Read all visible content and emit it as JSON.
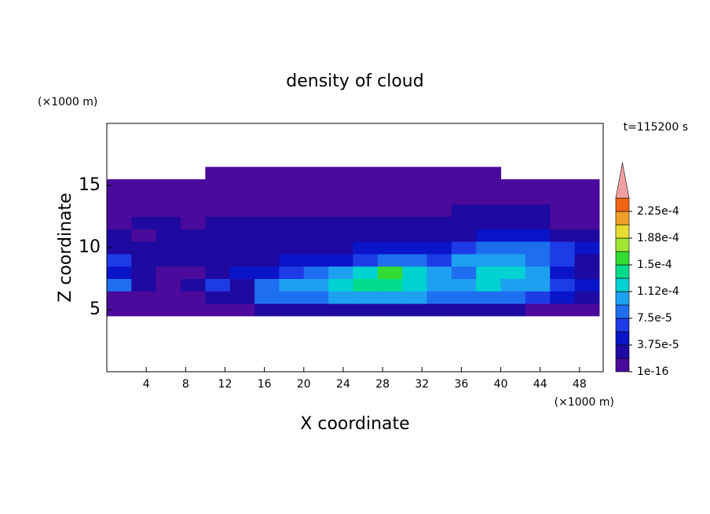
{
  "chart_data": {
    "type": "contour",
    "title": "density of cloud",
    "x_label": "X coordinate",
    "y_label": "Z coordinate",
    "x_unit": "(×1000 m)",
    "y_unit": "(×1000 m)",
    "time_label": "t=115200 s",
    "xlim": [
      0,
      50.4
    ],
    "ylim": [
      0,
      20
    ],
    "xticks": [
      4,
      8,
      12,
      16,
      20,
      24,
      28,
      32,
      36,
      40,
      44,
      48
    ],
    "yticks": [
      5,
      10,
      15
    ],
    "x": [
      1.25,
      3.75,
      6.25,
      8.75,
      11.25,
      13.75,
      16.25,
      18.75,
      21.25,
      23.75,
      26.25,
      28.75,
      31.25,
      33.75,
      36.25,
      38.75,
      41.25,
      43.75,
      46.25,
      48.75
    ],
    "y": [
      5,
      6,
      7,
      8,
      9,
      10,
      11,
      12,
      13,
      14,
      15,
      16
    ],
    "z": [
      [
        1e-05,
        1e-05,
        1e-05,
        1e-05,
        1e-05,
        1e-05,
        3e-05,
        3e-05,
        3e-05,
        3e-05,
        3e-05,
        3e-05,
        3e-05,
        3e-05,
        3e-05,
        3e-05,
        3e-05,
        1e-05,
        1e-05,
        1e-05
      ],
      [
        1e-05,
        1e-05,
        1e-05,
        1e-05,
        3e-05,
        3e-05,
        8.5e-05,
        8.5e-05,
        8.5e-05,
        0.0001,
        0.0001,
        0.0001,
        0.0001,
        8.5e-05,
        8.5e-05,
        8.5e-05,
        8.5e-05,
        7e-05,
        5e-05,
        3e-05
      ],
      [
        8.5e-05,
        3e-05,
        1e-05,
        3e-05,
        7e-05,
        3e-05,
        8.5e-05,
        0.0001,
        0.0001,
        0.00012,
        0.00014,
        0.00014,
        0.00012,
        0.0001,
        0.0001,
        0.00012,
        0.0001,
        0.0001,
        7e-05,
        5e-05
      ],
      [
        5e-05,
        3e-05,
        1e-05,
        1e-05,
        3e-05,
        5e-05,
        5e-05,
        7e-05,
        8.5e-05,
        0.0001,
        0.00012,
        0.00016,
        0.00012,
        0.0001,
        8.5e-05,
        0.00012,
        0.00012,
        0.0001,
        5e-05,
        3e-05
      ],
      [
        7e-05,
        3e-05,
        3e-05,
        3e-05,
        3e-05,
        3e-05,
        3e-05,
        5e-05,
        5e-05,
        5e-05,
        7e-05,
        8.5e-05,
        8.5e-05,
        7e-05,
        0.0001,
        0.0001,
        0.0001,
        8.5e-05,
        7e-05,
        3e-05
      ],
      [
        3e-05,
        3e-05,
        3e-05,
        3e-05,
        3e-05,
        3e-05,
        3e-05,
        3e-05,
        3e-05,
        3e-05,
        5e-05,
        5e-05,
        5e-05,
        5e-05,
        7e-05,
        8.5e-05,
        8.5e-05,
        8.5e-05,
        7e-05,
        5e-05
      ],
      [
        3e-05,
        1e-05,
        3e-05,
        3e-05,
        3e-05,
        3e-05,
        3e-05,
        3e-05,
        3e-05,
        3e-05,
        3e-05,
        3e-05,
        3e-05,
        3e-05,
        3e-05,
        5e-05,
        5e-05,
        5e-05,
        3e-05,
        3e-05
      ],
      [
        1e-05,
        3e-05,
        3e-05,
        1e-05,
        3e-05,
        3e-05,
        3e-05,
        3e-05,
        3e-05,
        3e-05,
        3e-05,
        3e-05,
        3e-05,
        3e-05,
        3e-05,
        3e-05,
        3e-05,
        3e-05,
        1e-05,
        1e-05
      ],
      [
        1e-05,
        1e-05,
        1e-05,
        1e-05,
        1e-05,
        1e-05,
        1e-05,
        1e-05,
        1e-05,
        1e-05,
        1e-05,
        1e-05,
        1e-05,
        1e-05,
        3e-05,
        3e-05,
        3e-05,
        3e-05,
        1e-05,
        1e-05
      ],
      [
        1e-05,
        1e-05,
        1e-05,
        1e-05,
        1e-05,
        1e-05,
        1e-05,
        1e-05,
        1e-05,
        1e-05,
        1e-05,
        1e-05,
        1e-05,
        1e-05,
        1e-05,
        1e-05,
        1e-05,
        1e-05,
        1e-05,
        1e-05
      ],
      [
        1e-05,
        1e-05,
        1e-05,
        1e-05,
        1e-05,
        1e-05,
        1e-05,
        1e-05,
        1e-05,
        1e-05,
        1e-05,
        1e-05,
        1e-05,
        1e-05,
        1e-05,
        1e-05,
        1e-05,
        1e-05,
        1e-05,
        1e-05
      ],
      [
        null,
        null,
        null,
        null,
        1e-05,
        1e-05,
        1e-05,
        1e-05,
        1e-05,
        1e-05,
        1e-05,
        1e-05,
        1e-05,
        1e-05,
        1e-05,
        1e-05,
        null,
        null,
        null,
        null
      ]
    ],
    "levels": [
      1e-16,
      1.875e-05,
      3.75e-05,
      5.625e-05,
      7.5e-05,
      9.375e-05,
      0.0001125,
      0.00013125,
      0.00015,
      0.00016875,
      0.0001875,
      0.00020625,
      0.000225,
      0.00024375
    ],
    "colors": [
      "#4b0a9b",
      "#1e0aa0",
      "#0a14c8",
      "#1e3ce6",
      "#1e6ef0",
      "#1ea0f0",
      "#00d2d2",
      "#00dc8c",
      "#32dc32",
      "#a0e632",
      "#e6dc32",
      "#f0a028",
      "#f06414"
    ],
    "extend_color": "#f0a0a0",
    "colorbar_ticks": [
      1e-16,
      {
        "value": 3.75e-05,
        "label": "3.75e-5"
      },
      {
        "value": 7.5e-05,
        "label": "7.5e-5"
      },
      {
        "value": 0.0001125,
        "label": "1.12e-4"
      },
      {
        "value": 0.00015,
        "label": "1.5e-4"
      },
      {
        "value": 0.0001875,
        "label": "1.88e-4"
      },
      {
        "value": 0.000225,
        "label": "2.25e-4"
      }
    ]
  }
}
